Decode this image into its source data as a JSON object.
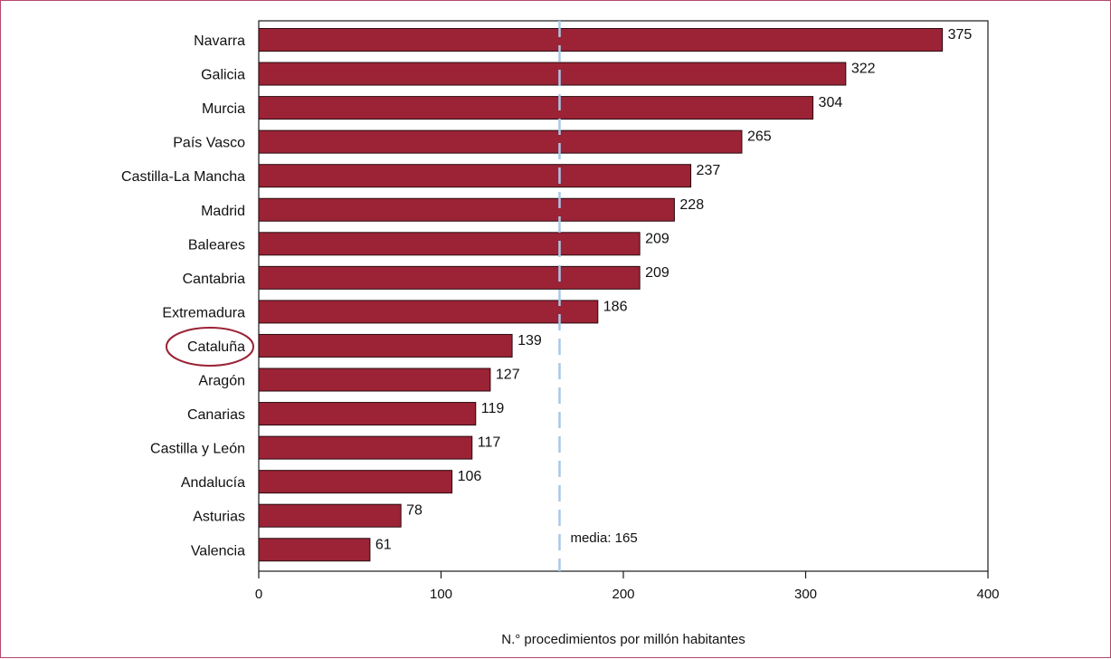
{
  "chart_data": {
    "type": "bar",
    "orientation": "horizontal",
    "categories": [
      "Navarra",
      "Galicia",
      "Murcia",
      "País Vasco",
      "Castilla-La Mancha",
      "Madrid",
      "Baleares",
      "Cantabria",
      "Extremadura",
      "Cataluña",
      "Aragón",
      "Canarias",
      "Castilla y León",
      "Andalucía",
      "Asturias",
      "Valencia"
    ],
    "values": [
      375,
      322,
      304,
      265,
      237,
      228,
      209,
      209,
      186,
      139,
      127,
      119,
      117,
      106,
      78,
      61
    ],
    "value_labels": [
      "375",
      "322",
      "304",
      "265",
      "237",
      "228",
      "209",
      "209",
      "186",
      "139",
      "127",
      "119",
      "117",
      "106",
      "78",
      "61"
    ],
    "title": "",
    "xlabel": "N.° procedimientos por millón habitantes",
    "ylabel": "",
    "xlim": [
      0,
      400
    ],
    "xticks": [
      0,
      100,
      200,
      300,
      400
    ],
    "xtick_labels": [
      "0",
      "100",
      "200",
      "300",
      "400"
    ],
    "grid": false,
    "bar_color": "#9b2335",
    "bar_edge_color": "#2a0a10",
    "reference_line": {
      "value": 165,
      "label": "media: 165",
      "color": "#a9c8e8",
      "style": "dashed"
    },
    "highlight": {
      "category": "Cataluña",
      "shape": "ellipse",
      "color": "#9b2335"
    }
  }
}
